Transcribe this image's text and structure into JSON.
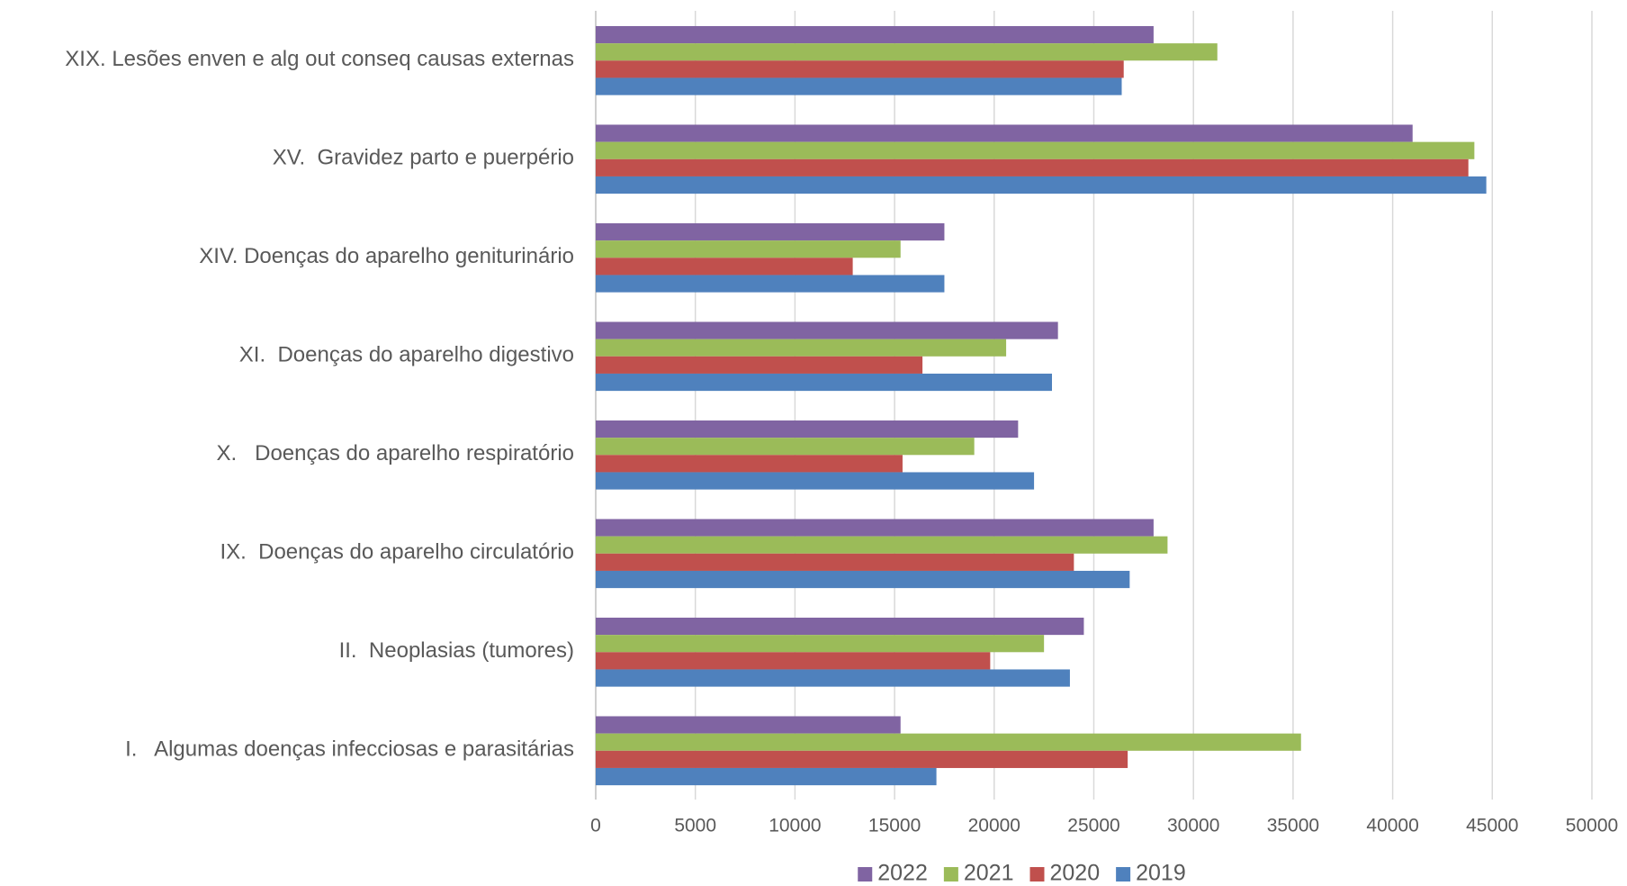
{
  "chart_data": {
    "type": "bar",
    "orientation": "horizontal",
    "categories": [
      "I.   Algumas doenças infecciosas e parasitárias",
      "II.  Neoplasias (tumores)",
      "IX.  Doenças do aparelho circulatório",
      "X.   Doenças do aparelho respiratório",
      "XI.  Doenças do aparelho digestivo",
      "XIV. Doenças do aparelho geniturinário",
      "XV.  Gravidez parto e puerpério",
      "XIX. Lesões enven e alg out conseq causas externas"
    ],
    "series": [
      {
        "name": "2022",
        "color": "#8064a2",
        "values": [
          15300,
          24500,
          28000,
          21200,
          23200,
          17500,
          41000,
          28000
        ]
      },
      {
        "name": "2021",
        "color": "#9bbb59",
        "values": [
          35400,
          22500,
          28700,
          19000,
          20600,
          15300,
          44100,
          31200
        ]
      },
      {
        "name": "2020",
        "color": "#c0504d",
        "values": [
          26700,
          19800,
          24000,
          15400,
          16400,
          12900,
          43800,
          26500
        ]
      },
      {
        "name": "2019",
        "color": "#4f81bd",
        "values": [
          17100,
          23800,
          26800,
          22000,
          22900,
          17500,
          44700,
          26400
        ]
      }
    ],
    "xlim": [
      0,
      50000
    ],
    "xticks": [
      0,
      5000,
      10000,
      15000,
      20000,
      25000,
      30000,
      35000,
      40000,
      45000,
      50000
    ],
    "grid": true,
    "legend": "bottom"
  }
}
